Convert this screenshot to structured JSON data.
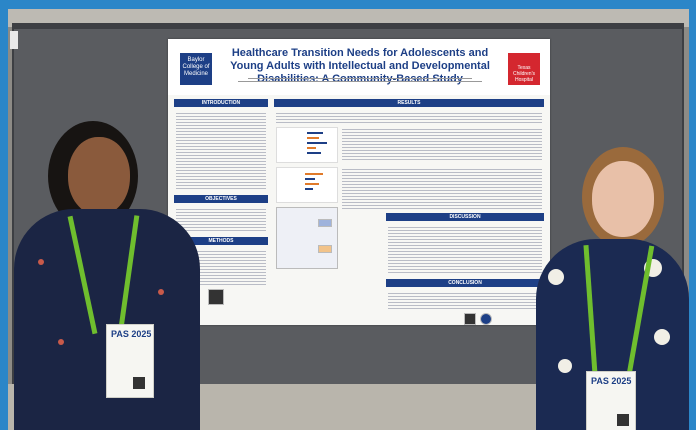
{
  "poster": {
    "title": "Healthcare Transition Needs for Adolescents and Young Adults with Intellectual and Developmental Disabilities: A Community-Based Study",
    "logo_left": "Baylor College of Medicine",
    "logo_right": "Texas Children's Hospital",
    "sections": {
      "introduction": "INTRODUCTION",
      "objectives": "OBJECTIVES",
      "methods": "METHODS",
      "results": "RESULTS",
      "discussion": "DISCUSSION",
      "conclusion": "CONCLUSION"
    }
  },
  "badges": {
    "left": "PAS 2025",
    "right": "PAS 2025"
  },
  "colors": {
    "frame": "#2b86c8",
    "poster_blue": "#1d3f86",
    "bcm_red": "#d4272f",
    "lanyard_green": "#6fbe2e"
  }
}
